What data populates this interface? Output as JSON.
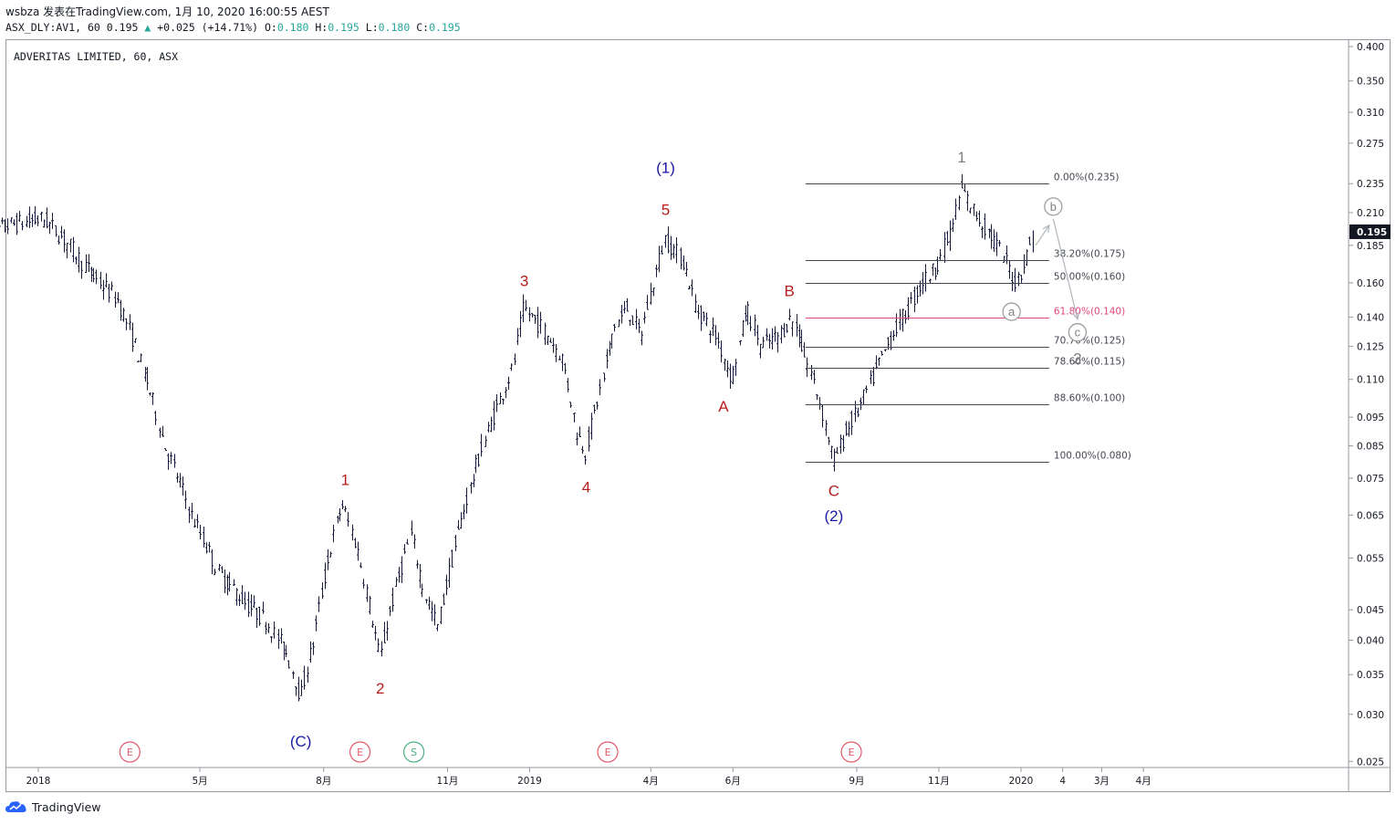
{
  "header": {
    "line1": "wsbza 发表在TradingView.com, 1月 10, 2020 16:00:55 AEST",
    "sym": "ASX_DLY:AV1, 60",
    "last": "0.195",
    "up_arrow": "▲",
    "change": "+0.025 (+14.71%)",
    "o_label": "O:",
    "o": "0.180",
    "h_label": "H:",
    "h": "0.195",
    "l_label": "L:",
    "l": "0.180",
    "c_label": "C:",
    "c": "0.195"
  },
  "chart_title": "ADVERITAS LIMITED, 60, ASX",
  "branding": "TradingView",
  "colors": {
    "candles": "#1a1c3d",
    "wave_red": "#b71c1c",
    "wave_blue": "#1a1aa6",
    "wave_grey": "#808080",
    "fib_line": "#434651",
    "fib_golden": "#e0457b",
    "event": "#e05a6a",
    "split": "#4caf80",
    "price_tag": "#131722"
  },
  "chart_data": {
    "type": "candlestick",
    "scale": "log",
    "ylim": [
      0.0245,
      0.41
    ],
    "y_ticks": [
      0.4,
      0.35,
      0.31,
      0.275,
      0.235,
      0.21,
      0.185,
      0.16,
      0.14,
      0.125,
      0.11,
      0.095,
      0.085,
      0.075,
      0.065,
      0.055,
      0.045,
      0.04,
      0.035,
      0.03,
      0.025
    ],
    "x_ticks": [
      {
        "label": "2018",
        "date": "2018-01-01"
      },
      {
        "label": "5月",
        "date": "2018-05-01"
      },
      {
        "label": "8月",
        "date": "2018-08-01"
      },
      {
        "label": "11月",
        "date": "2018-11-01"
      },
      {
        "label": "2019",
        "date": "2019-01-01"
      },
      {
        "label": "4月",
        "date": "2019-04-01"
      },
      {
        "label": "6月",
        "date": "2019-06-01"
      },
      {
        "label": "9月",
        "date": "2019-09-01"
      },
      {
        "label": "11月",
        "date": "2019-11-01"
      },
      {
        "label": "2020",
        "date": "2020-01-01"
      },
      {
        "label": "4",
        "date": "2020-02-01"
      },
      {
        "label": "3月",
        "date": "2020-03-01"
      },
      {
        "label": "4月",
        "date": "2020-04-01"
      }
    ],
    "last_price": "0.195",
    "price_path": [
      [
        "2017-11-20",
        0.19
      ],
      [
        "2017-12-10",
        0.2
      ],
      [
        "2018-01-05",
        0.205
      ],
      [
        "2018-01-20",
        0.19
      ],
      [
        "2018-02-10",
        0.165
      ],
      [
        "2018-03-01",
        0.15
      ],
      [
        "2018-03-20",
        0.115
      ],
      [
        "2018-04-05",
        0.085
      ],
      [
        "2018-04-25",
        0.065
      ],
      [
        "2018-05-15",
        0.052
      ],
      [
        "2018-06-05",
        0.046
      ],
      [
        "2018-06-20",
        0.043
      ],
      [
        "2018-07-05",
        0.038
      ],
      [
        "2018-07-15",
        0.032
      ],
      [
        "2018-07-25",
        0.04
      ],
      [
        "2018-08-05",
        0.055
      ],
      [
        "2018-08-15",
        0.068
      ],
      [
        "2018-08-25",
        0.058
      ],
      [
        "2018-09-05",
        0.045
      ],
      [
        "2018-09-12",
        0.037
      ],
      [
        "2018-09-25",
        0.05
      ],
      [
        "2018-10-05",
        0.06
      ],
      [
        "2018-10-15",
        0.048
      ],
      [
        "2018-10-25",
        0.042
      ],
      [
        "2018-11-05",
        0.055
      ],
      [
        "2018-11-20",
        0.075
      ],
      [
        "2018-12-05",
        0.095
      ],
      [
        "2018-12-20",
        0.115
      ],
      [
        "2018-12-28",
        0.145
      ],
      [
        "2019-01-10",
        0.135
      ],
      [
        "2019-01-25",
        0.12
      ],
      [
        "2019-02-05",
        0.09
      ],
      [
        "2019-02-12",
        0.083
      ],
      [
        "2019-02-25",
        0.11
      ],
      [
        "2019-03-05",
        0.135
      ],
      [
        "2019-03-15",
        0.145
      ],
      [
        "2019-03-25",
        0.13
      ],
      [
        "2019-04-05",
        0.165
      ],
      [
        "2019-04-12",
        0.19
      ],
      [
        "2019-04-25",
        0.175
      ],
      [
        "2019-05-05",
        0.145
      ],
      [
        "2019-05-20",
        0.13
      ],
      [
        "2019-06-01",
        0.11
      ],
      [
        "2019-06-12",
        0.145
      ],
      [
        "2019-06-22",
        0.125
      ],
      [
        "2019-07-05",
        0.13
      ],
      [
        "2019-07-15",
        0.14
      ],
      [
        "2019-07-25",
        0.12
      ],
      [
        "2019-08-05",
        0.1
      ],
      [
        "2019-08-15",
        0.08
      ],
      [
        "2019-08-25",
        0.09
      ],
      [
        "2019-09-05",
        0.1
      ],
      [
        "2019-09-20",
        0.12
      ],
      [
        "2019-10-01",
        0.135
      ],
      [
        "2019-10-10",
        0.145
      ],
      [
        "2019-10-20",
        0.16
      ],
      [
        "2019-10-30",
        0.17
      ],
      [
        "2019-11-10",
        0.195
      ],
      [
        "2019-11-18",
        0.23
      ],
      [
        "2019-11-28",
        0.21
      ],
      [
        "2019-12-08",
        0.195
      ],
      [
        "2019-12-18",
        0.18
      ],
      [
        "2019-12-28",
        0.16
      ],
      [
        "2020-01-05",
        0.175
      ],
      [
        "2020-01-10",
        0.195
      ]
    ],
    "fibonacci": {
      "from_date": "2019-07-25",
      "to_date": "2020-01-22",
      "levels": [
        {
          "label": "0.00%(0.235)",
          "price": 0.235,
          "golden": false
        },
        {
          "label": "38.20%(0.175)",
          "price": 0.175,
          "golden": false
        },
        {
          "label": "50.00%(0.160)",
          "price": 0.16,
          "golden": false
        },
        {
          "label": "61.80%(0.140)",
          "price": 0.14,
          "golden": true
        },
        {
          "label": "70.70%(0.125)",
          "price": 0.125,
          "golden": false
        },
        {
          "label": "78.60%(0.115)",
          "price": 0.115,
          "golden": false
        },
        {
          "label": "88.60%(0.100)",
          "price": 0.1,
          "golden": false
        },
        {
          "label": "100.00%(0.080)",
          "price": 0.08,
          "golden": false
        }
      ]
    },
    "wave_labels": [
      {
        "text": "(C)",
        "date": "2018-07-15",
        "price": 0.0265,
        "color": "blue"
      },
      {
        "text": "1",
        "date": "2018-08-17",
        "price": 0.073,
        "color": "red"
      },
      {
        "text": "2",
        "date": "2018-09-12",
        "price": 0.0325,
        "color": "red"
      },
      {
        "text": "3",
        "date": "2018-12-28",
        "price": 0.158,
        "color": "red"
      },
      {
        "text": "4",
        "date": "2019-02-12",
        "price": 0.071,
        "color": "red"
      },
      {
        "text": "5",
        "date": "2019-04-12",
        "price": 0.208,
        "color": "red"
      },
      {
        "text": "(1)",
        "date": "2019-04-12",
        "price": 0.245,
        "color": "blue"
      },
      {
        "text": "A",
        "date": "2019-05-25",
        "price": 0.097,
        "color": "red"
      },
      {
        "text": "B",
        "date": "2019-07-13",
        "price": 0.152,
        "color": "red"
      },
      {
        "text": "C",
        "date": "2019-08-15",
        "price": 0.07,
        "color": "red"
      },
      {
        "text": "(2)",
        "date": "2019-08-15",
        "price": 0.0635,
        "color": "blue"
      },
      {
        "text": "1",
        "date": "2019-11-18",
        "price": 0.255,
        "color": "grey"
      },
      {
        "text": "2",
        "date": "2020-02-12",
        "price": 0.117,
        "color": "grey"
      }
    ],
    "circle_labels": [
      {
        "text": "a",
        "date": "2019-12-25",
        "price": 0.143
      },
      {
        "text": "b",
        "date": "2020-01-25",
        "price": 0.215
      },
      {
        "text": "c",
        "date": "2020-02-12",
        "price": 0.132
      }
    ],
    "projection": [
      [
        "2020-01-12",
        0.185
      ],
      [
        "2020-01-22",
        0.2
      ],
      [
        "2020-01-25",
        0.205
      ],
      [
        "2020-02-12",
        0.139
      ]
    ],
    "events": [
      {
        "text": "E",
        "date": "2018-03-10",
        "kind": "earnings"
      },
      {
        "text": "E",
        "date": "2018-08-28",
        "kind": "earnings"
      },
      {
        "text": "S",
        "date": "2018-10-07",
        "kind": "split"
      },
      {
        "text": "E",
        "date": "2019-02-28",
        "kind": "earnings"
      },
      {
        "text": "E",
        "date": "2019-08-28",
        "kind": "earnings"
      }
    ]
  }
}
